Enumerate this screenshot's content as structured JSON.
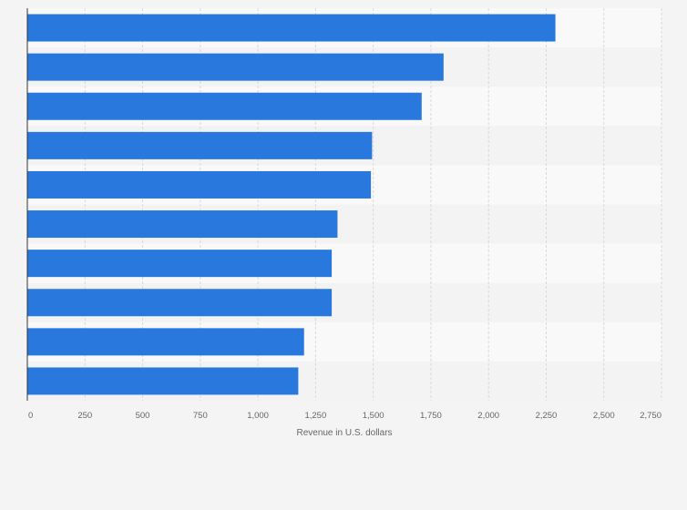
{
  "chart_data": {
    "type": "bar",
    "orientation": "horizontal",
    "title": "",
    "xlabel": "Revenue in U.S. dollars",
    "ylabel": "",
    "categories": [
      "",
      "",
      "",
      "",
      "",
      "",
      "",
      "",
      "",
      ""
    ],
    "values": [
      2290,
      1805,
      1710,
      1495,
      1490,
      1345,
      1320,
      1320,
      1200,
      1175
    ],
    "xlim": [
      0,
      2750
    ],
    "x_ticks": [
      0,
      250,
      500,
      750,
      1000,
      1250,
      1500,
      1750,
      2000,
      2250,
      2500,
      2750
    ],
    "x_tick_labels": [
      "0",
      "250",
      "500",
      "750",
      "1,000",
      "1,250",
      "1,500",
      "1,750",
      "2,000",
      "2,250",
      "2,500",
      "2,750"
    ],
    "grid": "vertical",
    "legend": "none",
    "colors": {
      "bar": "#2878dd",
      "grid": "#d9d9d9",
      "band_light": "#f9f9f9",
      "band_dark": "#f3f3f3",
      "axis": "#333333",
      "text": "#666666",
      "background": "#f4f4f4"
    }
  }
}
